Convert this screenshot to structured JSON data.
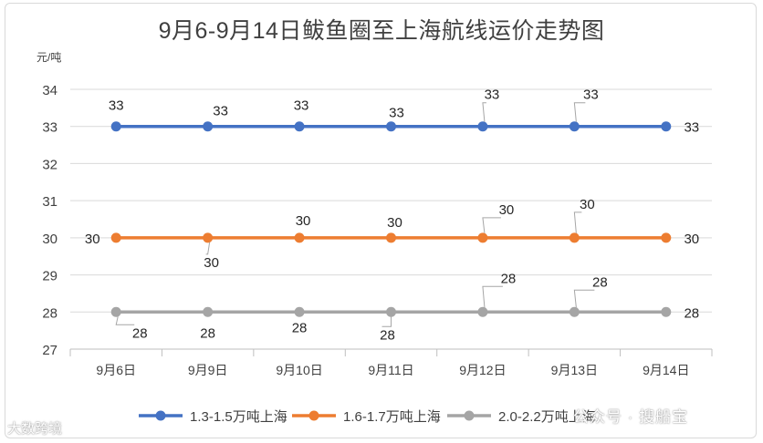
{
  "chart_data": {
    "type": "line",
    "title": "9月6-9月14日鲅鱼圈至上海航线运价走势图",
    "ylabel": "元/吨",
    "xlabel": "",
    "categories": [
      "9月6日",
      "9月9日",
      "9月10日",
      "9月11日",
      "9月12日",
      "9月13日",
      "9月14日"
    ],
    "ylim": [
      27,
      34
    ],
    "yticks": [
      27,
      28,
      29,
      30,
      31,
      32,
      33,
      34
    ],
    "grid": true,
    "legend": "bottom",
    "series": [
      {
        "name": "1.3-1.5万吨上海",
        "values": [
          33,
          33,
          33,
          33,
          33,
          33,
          33
        ],
        "color": "#4472c4"
      },
      {
        "name": "1.6-1.7万吨上海",
        "values": [
          30,
          30,
          30,
          30,
          30,
          30,
          30
        ],
        "color": "#ed7d31"
      },
      {
        "name": "2.0-2.2万吨上海",
        "values": [
          28,
          28,
          28,
          28,
          28,
          28,
          28
        ],
        "color": "#a5a5a5"
      }
    ]
  },
  "watermarks": {
    "left": "大数跨境",
    "right": "公众号 · 搜船宝"
  }
}
